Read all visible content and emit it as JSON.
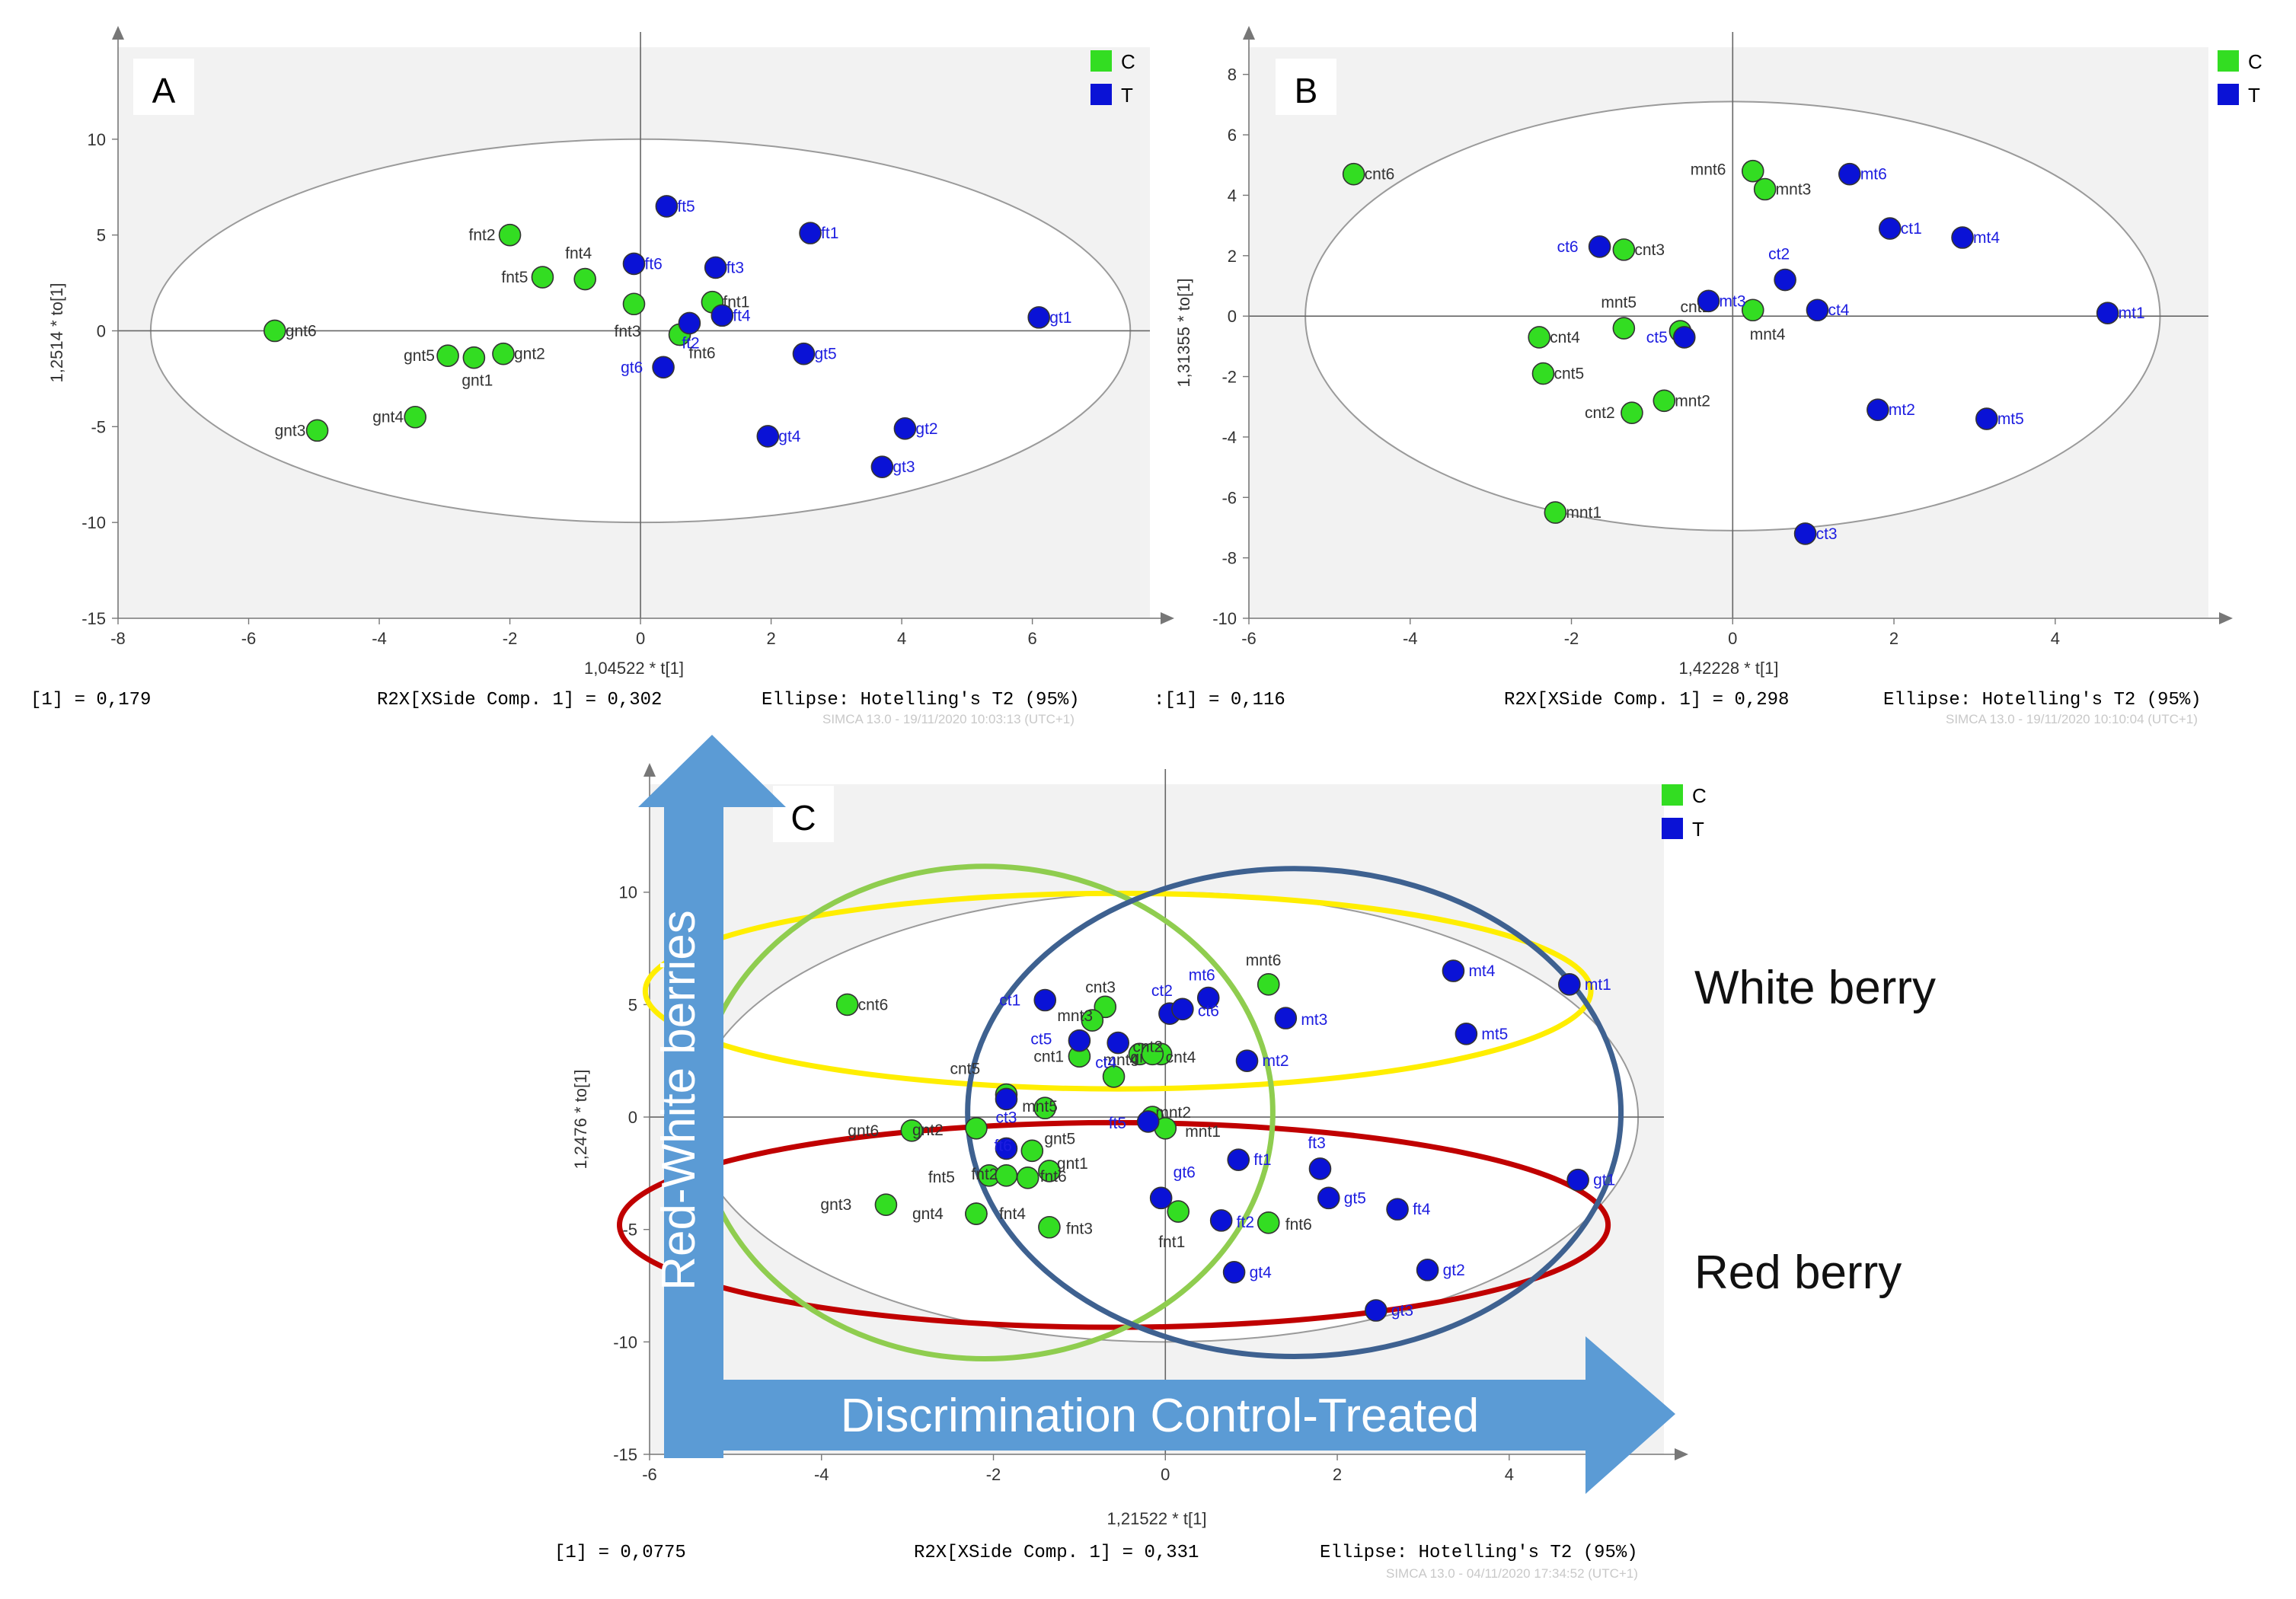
{
  "colors": {
    "C": "#33dd22",
    "T": "#0a12d6",
    "label_C": "#333333",
    "label_T": "#1d1de0",
    "arrow": "#5b9bd5",
    "white_berry_ellipse": "#ffee00",
    "red_berry_ellipse": "#c00000",
    "control_circle": "#8fcd4f",
    "treated_circle": "#3e6190"
  },
  "annotations": {
    "white_berry": "White berry",
    "red_berry": "Red berry",
    "vertical_arrow": "Red-White berries",
    "horizontal_arrow": "Discrimination Control-Treated"
  },
  "chart_data": [
    {
      "type": "scatter",
      "panel": "A",
      "xlabel": "1,04522 * t[1]",
      "ylabel": "1,2514 * to[1]",
      "xlim": [
        -8,
        7.8
      ],
      "ylim": [
        -15,
        14.8
      ],
      "xticks": [
        -8,
        -6,
        -4,
        -2,
        0,
        2,
        4,
        6
      ],
      "yticks": [
        -15,
        -10,
        -5,
        0,
        5,
        10
      ],
      "legend": [
        {
          "key": "C",
          "label": "C"
        },
        {
          "key": "T",
          "label": "T"
        }
      ],
      "footer_left": "[1] = 0,179",
      "footer_mid": "R2X[XSide Comp. 1] = 0,302",
      "footer_right": "Ellipse: Hotelling's T2 (95%)",
      "simca": "SIMCA 13.0 - 19/11/2020 10:03:13 (UTC+1)",
      "ellipse": {
        "cx": 0,
        "cy": 0,
        "rx": 7.5,
        "ry": 10
      },
      "points": [
        {
          "label": "gnt6",
          "g": "C",
          "x": -5.6,
          "y": 0.0,
          "dx": 14,
          "dy": 0
        },
        {
          "label": "gnt5",
          "g": "C",
          "x": -2.95,
          "y": -1.3,
          "dx": -58,
          "dy": 0
        },
        {
          "label": "gnt1",
          "g": "C",
          "x": -2.55,
          "y": -1.4,
          "dx": -16,
          "dy": 30
        },
        {
          "label": "gnt2",
          "g": "C",
          "x": -2.1,
          "y": -1.2,
          "dx": 14,
          "dy": 0
        },
        {
          "label": "gnt4",
          "g": "C",
          "x": -3.45,
          "y": -4.5,
          "dx": -56,
          "dy": 0
        },
        {
          "label": "gnt3",
          "g": "C",
          "x": -4.95,
          "y": -5.2,
          "dx": -56,
          "dy": 0
        },
        {
          "label": "fnt2",
          "g": "C",
          "x": -2.0,
          "y": 5.0,
          "dx": -54,
          "dy": 0
        },
        {
          "label": "fnt4",
          "g": "C",
          "x": -0.85,
          "y": 2.7,
          "dx": -26,
          "dy": -34
        },
        {
          "label": "fnt5",
          "g": "C",
          "x": -1.5,
          "y": 2.8,
          "dx": -54,
          "dy": 0
        },
        {
          "label": "fnt3",
          "g": "C",
          "x": -0.1,
          "y": 1.4,
          "dx": -26,
          "dy": 36
        },
        {
          "label": "fnt1",
          "g": "C",
          "x": 1.1,
          "y": 1.5,
          "dx": 14,
          "dy": 0
        },
        {
          "label": "fnt6",
          "g": "C",
          "x": 0.6,
          "y": -0.2,
          "dx": 12,
          "dy": 24
        },
        {
          "label": "ft5",
          "g": "T",
          "x": 0.4,
          "y": 6.5,
          "dx": 14,
          "dy": 0
        },
        {
          "label": "ft1",
          "g": "T",
          "x": 2.6,
          "y": 5.1,
          "dx": 14,
          "dy": 0
        },
        {
          "label": "ft6",
          "g": "T",
          "x": -0.1,
          "y": 3.5,
          "dx": 14,
          "dy": 0
        },
        {
          "label": "ft3",
          "g": "T",
          "x": 1.15,
          "y": 3.3,
          "dx": 14,
          "dy": 0
        },
        {
          "label": "ft2",
          "g": "T",
          "x": 0.75,
          "y": 0.4,
          "dx": -10,
          "dy": 26
        },
        {
          "label": "ft4",
          "g": "T",
          "x": 1.25,
          "y": 0.8,
          "dx": 14,
          "dy": 0
        },
        {
          "label": "gt1",
          "g": "T",
          "x": 6.1,
          "y": 0.7,
          "dx": 14,
          "dy": 0
        },
        {
          "label": "gt5",
          "g": "T",
          "x": 2.5,
          "y": -1.2,
          "dx": 14,
          "dy": 0
        },
        {
          "label": "gt6",
          "g": "T",
          "x": 0.35,
          "y": -1.9,
          "dx": -56,
          "dy": 0
        },
        {
          "label": "gt4",
          "g": "T",
          "x": 1.95,
          "y": -5.5,
          "dx": 14,
          "dy": 0
        },
        {
          "label": "gt2",
          "g": "T",
          "x": 4.05,
          "y": -5.1,
          "dx": 14,
          "dy": 0
        },
        {
          "label": "gt3",
          "g": "T",
          "x": 3.7,
          "y": -7.1,
          "dx": 14,
          "dy": 0
        }
      ]
    },
    {
      "type": "scatter",
      "panel": "B",
      "xlabel": "1,42228 * t[1]",
      "ylabel": "1,31355 * to[1]",
      "xlim": [
        -6,
        5.9
      ],
      "ylim": [
        -10,
        8.9
      ],
      "xticks": [
        -6,
        -4,
        -2,
        0,
        2,
        4
      ],
      "yticks": [
        -10,
        -8,
        -6,
        -4,
        -2,
        0,
        2,
        4,
        6,
        8
      ],
      "legend": [
        {
          "key": "C",
          "label": "C"
        },
        {
          "key": "T",
          "label": "T"
        }
      ],
      "footer_left": ":[1] = 0,116",
      "footer_mid": "R2X[XSide Comp. 1] = 0,298",
      "footer_right": "Ellipse: Hotelling's T2 (95%)",
      "simca": "SIMCA 13.0 - 19/11/2020 10:10:04 (UTC+1)",
      "ellipse": {
        "cx": 0,
        "cy": 0,
        "rx": 5.3,
        "ry": 7.1
      },
      "points": [
        {
          "label": "cnt6",
          "g": "C",
          "x": -4.7,
          "y": 4.7,
          "dx": 14,
          "dy": 0
        },
        {
          "label": "mnt6",
          "g": "C",
          "x": 0.25,
          "y": 4.8,
          "dx": -82,
          "dy": -2
        },
        {
          "label": "mnt3",
          "g": "C",
          "x": 0.4,
          "y": 4.2,
          "dx": 14,
          "dy": 0
        },
        {
          "label": "cnt3",
          "g": "C",
          "x": -1.35,
          "y": 2.2,
          "dx": 14,
          "dy": 0
        },
        {
          "label": "mnt5",
          "g": "C",
          "x": -1.35,
          "y": -0.4,
          "dx": -30,
          "dy": -34
        },
        {
          "label": "cnt1",
          "g": "C",
          "x": -0.65,
          "y": -0.5,
          "dx": 0,
          "dy": -32
        },
        {
          "label": "mnt4",
          "g": "C",
          "x": 0.25,
          "y": 0.2,
          "dx": -4,
          "dy": 32
        },
        {
          "label": "cnt4",
          "g": "C",
          "x": -2.4,
          "y": -0.7,
          "dx": 14,
          "dy": 0
        },
        {
          "label": "cnt5",
          "g": "C",
          "x": -2.35,
          "y": -1.9,
          "dx": 14,
          "dy": 0
        },
        {
          "label": "cnt2",
          "g": "C",
          "x": -1.25,
          "y": -3.2,
          "dx": -62,
          "dy": 0
        },
        {
          "label": "mnt2",
          "g": "C",
          "x": -0.85,
          "y": -2.8,
          "dx": 14,
          "dy": 0
        },
        {
          "label": "mnt1",
          "g": "C",
          "x": -2.2,
          "y": -6.5,
          "dx": 14,
          "dy": 0
        },
        {
          "label": "mt6",
          "g": "T",
          "x": 1.45,
          "y": 4.7,
          "dx": 14,
          "dy": 0
        },
        {
          "label": "ct1",
          "g": "T",
          "x": 1.95,
          "y": 2.9,
          "dx": 14,
          "dy": 0
        },
        {
          "label": "mt4",
          "g": "T",
          "x": 2.85,
          "y": 2.6,
          "dx": 14,
          "dy": 0
        },
        {
          "label": "ct6",
          "g": "T",
          "x": -1.65,
          "y": 2.3,
          "dx": -56,
          "dy": 0
        },
        {
          "label": "ct2",
          "g": "T",
          "x": 0.65,
          "y": 1.2,
          "dx": -22,
          "dy": -34
        },
        {
          "label": "mt3",
          "g": "T",
          "x": -0.3,
          "y": 0.5,
          "dx": 14,
          "dy": 0
        },
        {
          "label": "ct4",
          "g": "T",
          "x": 1.05,
          "y": 0.2,
          "dx": 14,
          "dy": 0
        },
        {
          "label": "ct5",
          "g": "T",
          "x": -0.6,
          "y": -0.7,
          "dx": -50,
          "dy": 0
        },
        {
          "label": "mt1",
          "g": "T",
          "x": 4.65,
          "y": 0.1,
          "dx": 14,
          "dy": 0
        },
        {
          "label": "mt2",
          "g": "T",
          "x": 1.8,
          "y": -3.1,
          "dx": 14,
          "dy": 0
        },
        {
          "label": "mt5",
          "g": "T",
          "x": 3.15,
          "y": -3.4,
          "dx": 14,
          "dy": 0
        },
        {
          "label": "ct3",
          "g": "T",
          "x": 0.9,
          "y": -7.2,
          "dx": 14,
          "dy": 0
        }
      ]
    },
    {
      "type": "scatter",
      "panel": "C",
      "xlabel": "1,21522 * t[1]",
      "ylabel": "1,2476 * to[1]",
      "xlim": [
        -6,
        5.8
      ],
      "ylim": [
        -15,
        14.8
      ],
      "xticks": [
        -6,
        -4,
        -2,
        0,
        2,
        4
      ],
      "yticks": [
        -15,
        -10,
        -5,
        0,
        5,
        10
      ],
      "legend": [
        {
          "key": "C",
          "label": "C"
        },
        {
          "key": "T",
          "label": "T"
        }
      ],
      "footer_left": "[1] = 0,0775",
      "footer_mid": "R2X[XSide Comp. 1] = 0,331",
      "footer_right": "Ellipse: Hotelling's T2 (95%)",
      "simca": "SIMCA 13.0 - 04/11/2020 17:34:52 (UTC+1)",
      "ellipse": {
        "cx": 0,
        "cy": 0,
        "rx": 5.5,
        "ry": 10
      },
      "points": [
        {
          "label": "cnt6",
          "g": "C",
          "x": -3.7,
          "y": 5.0,
          "dx": 14,
          "dy": 0
        },
        {
          "label": "cnt3",
          "g": "C",
          "x": -0.7,
          "y": 4.9,
          "dx": -26,
          "dy": -26
        },
        {
          "label": "mnt3",
          "g": "C",
          "x": -0.85,
          "y": 4.3,
          "dx": -46,
          "dy": -6
        },
        {
          "label": "mnt6",
          "g": "C",
          "x": 1.2,
          "y": 5.9,
          "dx": -30,
          "dy": -32
        },
        {
          "label": "cnt1",
          "g": "C",
          "x": -1.0,
          "y": 2.7,
          "dx": -60,
          "dy": 0
        },
        {
          "label": "cnt5",
          "g": "C",
          "x": -1.85,
          "y": 1.0,
          "dx": -74,
          "dy": -34
        },
        {
          "label": "gnt4",
          "g": "C",
          "x": -0.3,
          "y": 2.8,
          "dx": -12,
          "dy": 4
        },
        {
          "label": "cnt4",
          "g": "C",
          "x": -0.05,
          "y": 2.8,
          "dx": 6,
          "dy": 4
        },
        {
          "label": "cnt2",
          "g": "C",
          "x": -0.15,
          "y": 2.8,
          "dx": -26,
          "dy": -10
        },
        {
          "label": "mnt4",
          "g": "C",
          "x": -0.6,
          "y": 1.8,
          "dx": -14,
          "dy": -22
        },
        {
          "label": "mnt5",
          "g": "C",
          "x": -1.4,
          "y": 0.4,
          "dx": -30,
          "dy": -2
        },
        {
          "label": "mnt2",
          "g": "C",
          "x": -0.15,
          "y": 0.0,
          "dx": 4,
          "dy": -6
        },
        {
          "label": "mnt1",
          "g": "C",
          "x": 0.0,
          "y": -0.5,
          "dx": 26,
          "dy": 4
        },
        {
          "label": "gnt6",
          "g": "C",
          "x": -2.95,
          "y": -0.6,
          "dx": -84,
          "dy": 0
        },
        {
          "label": "gnt2",
          "g": "C",
          "x": -2.2,
          "y": -0.5,
          "dx": -84,
          "dy": 2
        },
        {
          "label": "gnt5",
          "g": "C",
          "x": -1.55,
          "y": -1.5,
          "dx": 16,
          "dy": -16
        },
        {
          "label": "gnt1",
          "g": "C",
          "x": -1.35,
          "y": -2.4,
          "dx": 10,
          "dy": -10
        },
        {
          "label": "fnt5",
          "g": "C",
          "x": -2.05,
          "y": -2.6,
          "dx": -80,
          "dy": 2
        },
        {
          "label": "fnt2",
          "g": "C",
          "x": -1.85,
          "y": -2.6,
          "dx": -46,
          "dy": -2
        },
        {
          "label": "fnt6",
          "g": "C",
          "x": -1.6,
          "y": -2.7,
          "dx": 16,
          "dy": -2
        },
        {
          "label": "fnt4",
          "g": "C",
          "x": -2.2,
          "y": -4.3,
          "dx": 30,
          "dy": 0
        },
        {
          "label": "gnt3",
          "g": "C",
          "x": -3.25,
          "y": -3.9,
          "dx": -86,
          "dy": 0
        },
        {
          "label": "gnt4b",
          "g": "C",
          "x": -2.2,
          "y": -4.3,
          "dx": -84,
          "dy": 0
        },
        {
          "label": "fnt3",
          "g": "C",
          "x": -1.35,
          "y": -4.9,
          "dx": 22,
          "dy": 2
        },
        {
          "label": "fnt1",
          "g": "C",
          "x": 0.15,
          "y": -4.2,
          "dx": -26,
          "dy": 40
        },
        {
          "label": "fnt6b",
          "g": "C",
          "x": 1.2,
          "y": -4.7,
          "dx": 22,
          "dy": 2
        },
        {
          "label": "ct1",
          "g": "T",
          "x": -1.4,
          "y": 5.2,
          "dx": -60,
          "dy": 0
        },
        {
          "label": "ct2",
          "g": "T",
          "x": 0.05,
          "y": 4.6,
          "dx": -24,
          "dy": -30
        },
        {
          "label": "mt6",
          "g": "T",
          "x": 0.5,
          "y": 5.3,
          "dx": -26,
          "dy": -30
        },
        {
          "label": "ct6",
          "g": "T",
          "x": 0.2,
          "y": 4.8,
          "dx": 20,
          "dy": 2
        },
        {
          "label": "mt3",
          "g": "T",
          "x": 1.4,
          "y": 4.4,
          "dx": 20,
          "dy": 2
        },
        {
          "label": "mt4",
          "g": "T",
          "x": 3.35,
          "y": 6.5,
          "dx": 20,
          "dy": 0
        },
        {
          "label": "mt1",
          "g": "T",
          "x": 4.7,
          "y": 5.9,
          "dx": 20,
          "dy": 0
        },
        {
          "label": "mt5",
          "g": "T",
          "x": 3.5,
          "y": 3.7,
          "dx": 20,
          "dy": 0
        },
        {
          "label": "ct5",
          "g": "T",
          "x": -1.0,
          "y": 3.4,
          "dx": -64,
          "dy": -2
        },
        {
          "label": "ct4",
          "g": "T",
          "x": -0.55,
          "y": 3.3,
          "dx": -30,
          "dy": 26
        },
        {
          "label": "mt2",
          "g": "T",
          "x": 0.95,
          "y": 2.5,
          "dx": 20,
          "dy": 0
        },
        {
          "label": "ct3",
          "g": "T",
          "x": -1.85,
          "y": 0.8,
          "dx": -14,
          "dy": 24
        },
        {
          "label": "ft5",
          "g": "T",
          "x": -0.2,
          "y": -0.2,
          "dx": -52,
          "dy": 2
        },
        {
          "label": "ft1",
          "g": "T",
          "x": 0.85,
          "y": -1.9,
          "dx": 20,
          "dy": 0
        },
        {
          "label": "ft6",
          "g": "T",
          "x": -1.85,
          "y": -1.4,
          "dx": -16,
          "dy": -4
        },
        {
          "label": "ft3",
          "g": "T",
          "x": 1.8,
          "y": -2.3,
          "dx": -16,
          "dy": -34
        },
        {
          "label": "gt6",
          "g": "T",
          "x": -0.05,
          "y": -3.6,
          "dx": 16,
          "dy": -34
        },
        {
          "label": "ft2",
          "g": "T",
          "x": 0.65,
          "y": -4.6,
          "dx": 20,
          "dy": 2
        },
        {
          "label": "gt5",
          "g": "T",
          "x": 1.9,
          "y": -3.6,
          "dx": 20,
          "dy": 0
        },
        {
          "label": "ft4",
          "g": "T",
          "x": 2.7,
          "y": -4.1,
          "dx": 20,
          "dy": 0
        },
        {
          "label": "gt1",
          "g": "T",
          "x": 4.8,
          "y": -2.8,
          "dx": 20,
          "dy": 0
        },
        {
          "label": "gt4",
          "g": "T",
          "x": 0.8,
          "y": -6.9,
          "dx": 20,
          "dy": 0
        },
        {
          "label": "gt2",
          "g": "T",
          "x": 3.05,
          "y": -6.8,
          "dx": 20,
          "dy": 0
        },
        {
          "label": "gt3",
          "g": "T",
          "x": 2.45,
          "y": -8.6,
          "dx": 20,
          "dy": 0
        }
      ],
      "overlays": [
        {
          "name": "white-berry-ellipse",
          "kind": "ellipse",
          "color": "yellow",
          "cx": -0.55,
          "cy": 5.6,
          "rx": 5.5,
          "ry": 4.35
        },
        {
          "name": "red-berry-ellipse",
          "kind": "ellipse",
          "color": "red",
          "cx": -0.6,
          "cy": -4.8,
          "rx": 5.75,
          "ry": 4.55
        },
        {
          "name": "control-circle",
          "kind": "ellipse",
          "color": "green",
          "cx": -2.1,
          "cy": 0.2,
          "rx": 3.35,
          "ry": 10.95
        },
        {
          "name": "treated-circle",
          "kind": "ellipse",
          "color": "blue",
          "cx": 1.5,
          "cy": 0.2,
          "rx": 3.8,
          "ry": 10.85
        }
      ]
    }
  ]
}
